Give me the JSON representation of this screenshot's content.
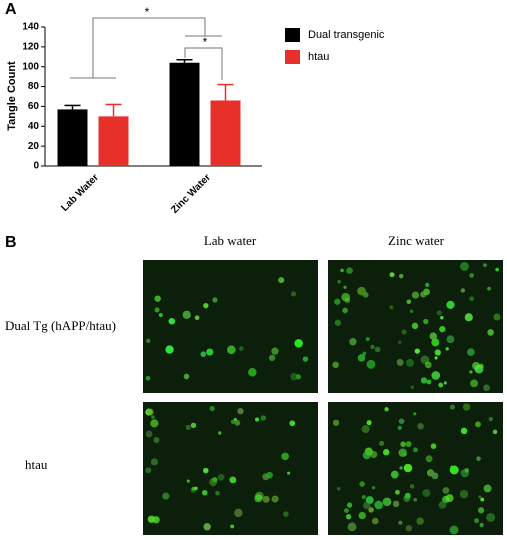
{
  "panel_a_label": "A",
  "chart_data": {
    "type": "bar",
    "ylabel": "Tangle Count",
    "categories": [
      "Lab Water",
      "Zinc Water"
    ],
    "series": [
      {
        "name": "Dual transgenic",
        "color": "#000000",
        "values": [
          57,
          104
        ],
        "errors": [
          4,
          3
        ]
      },
      {
        "name": "htau",
        "color": "#e8302a",
        "values": [
          50,
          66
        ],
        "errors": [
          12,
          16
        ]
      }
    ],
    "ylim": [
      0,
      140
    ],
    "yticks": [
      0,
      20,
      40,
      60,
      80,
      100,
      120,
      140
    ],
    "annotations": [
      "*",
      "*"
    ],
    "legend": "right"
  },
  "panel_b": {
    "label": "B",
    "columns": [
      "Lab water",
      "Zinc water"
    ],
    "rows": [
      "Dual Tg (hAPP/htau)",
      "htau"
    ]
  }
}
